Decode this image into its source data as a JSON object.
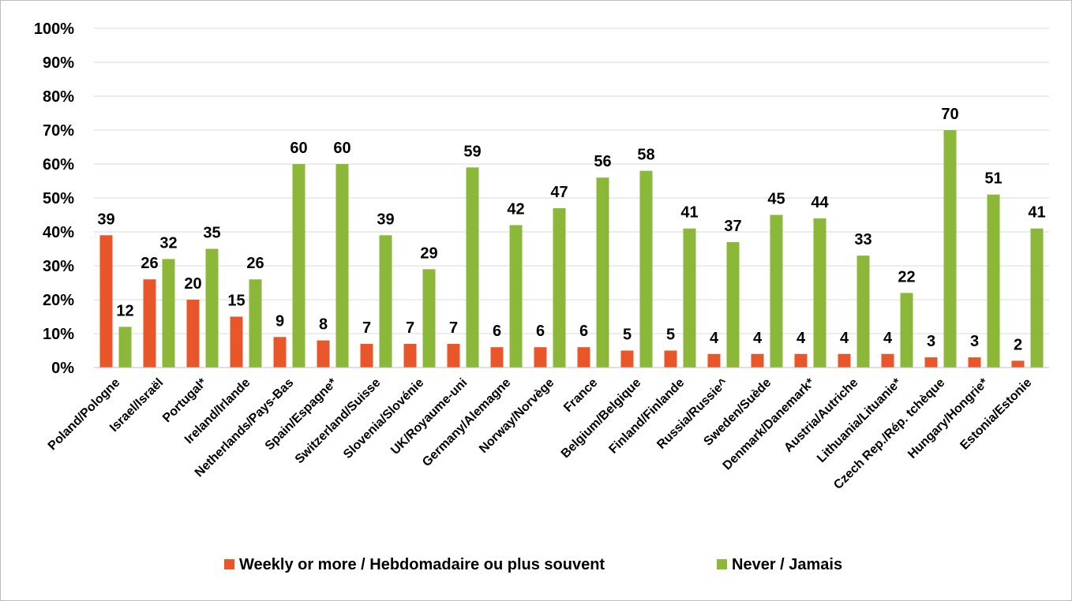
{
  "chart_data": {
    "type": "bar",
    "categories": [
      "Poland/Pologne",
      "Israel/Israël",
      "Portugal*",
      "Ireland/Irlande",
      "Netherlands/Pays-Bas",
      "Spain/Espagne*",
      "Switzerland/Suisse",
      "Slovenia/Slovénie",
      "UK/Royaume-uni",
      "Germany/Alemagne",
      "Norway/Norvège",
      "France",
      "Belgium/Belgique",
      "Finland/Finlande",
      "Russia/Russie^",
      "Sweden/Suède",
      "Denmark/Danemark*",
      "Austria/Autriche",
      "Lithuania/Lituanie*",
      "Czech Rep./Rép. tchèque",
      "Hungary/Hongrie*",
      "Estonia/Estonie"
    ],
    "series": [
      {
        "name": "Weekly or more / Hebdomadaire ou plus souvent",
        "color": "#E8562A",
        "values": [
          39,
          26,
          20,
          15,
          9,
          8,
          7,
          7,
          7,
          6,
          6,
          6,
          5,
          5,
          4,
          4,
          4,
          4,
          4,
          3,
          3,
          2
        ],
        "labels": [
          "39",
          "26",
          "20",
          "15",
          "9",
          "8",
          "7",
          "7",
          "7",
          "6",
          "6",
          "6",
          "5",
          "5",
          "4",
          "4",
          "4",
          "4",
          "4",
          "3",
          "3",
          "2"
        ]
      },
      {
        "name": "Never / Jamais",
        "color": "#8CB83A",
        "values": [
          12,
          32,
          35,
          26,
          60,
          60,
          39,
          29,
          59,
          42,
          47,
          56,
          58,
          41,
          37,
          45,
          44,
          33,
          22,
          70,
          51,
          41
        ],
        "labels": [
          "12",
          "32",
          "35",
          "26",
          "60",
          "60",
          "39",
          "29",
          "59",
          "42",
          "47",
          "56",
          "58",
          "41",
          "37",
          "45",
          "44",
          "33",
          "22",
          "70",
          "51",
          "41"
        ]
      }
    ],
    "ylim": [
      0,
      100
    ],
    "yticks": [
      "0%",
      "10%",
      "20%",
      "30%",
      "40%",
      "50%",
      "60%",
      "70%",
      "80%",
      "90%",
      "100%"
    ],
    "grid": true,
    "legend_position": "bottom"
  }
}
